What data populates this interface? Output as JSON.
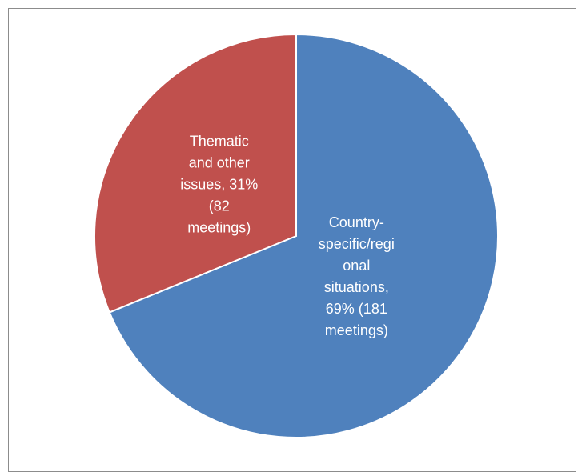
{
  "chart_data": {
    "type": "pie",
    "slices": [
      {
        "label_lines": [
          "Country-",
          "specific/regi",
          "onal",
          "situations,",
          "69% (181",
          "meetings)"
        ],
        "value": 181,
        "percent": 69,
        "color": "#4f81bd"
      },
      {
        "label_lines": [
          "Thematic",
          "and other",
          "issues, 31%",
          "(82",
          "meetings)"
        ],
        "value": 82,
        "percent": 31,
        "color": "#c0504d"
      }
    ],
    "start_angle_deg": 0,
    "direction": "clockwise",
    "slice_border": "#ffffff",
    "data_labels": "inside"
  }
}
